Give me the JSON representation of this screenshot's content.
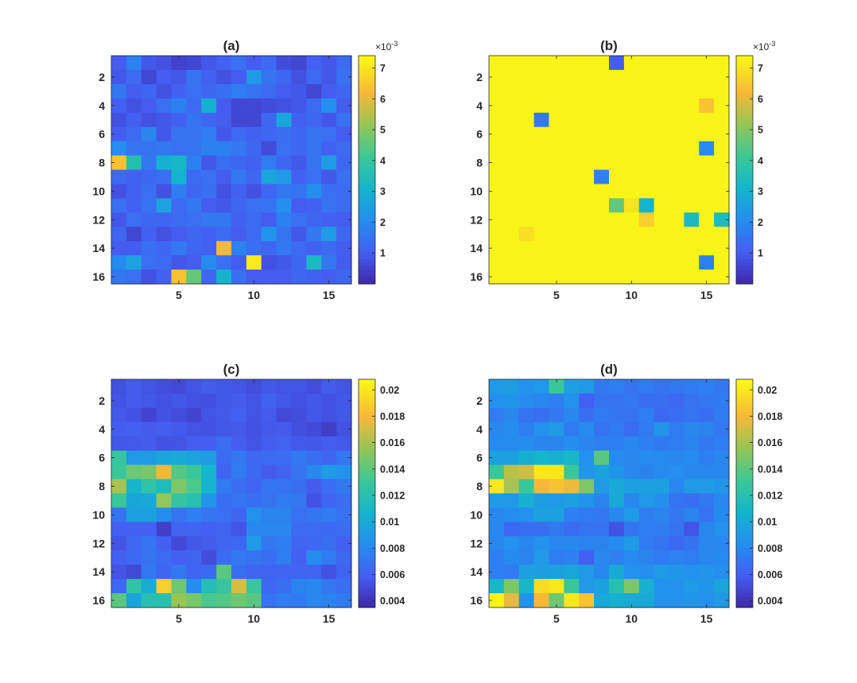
{
  "chart_data": [
    {
      "type": "heatmap",
      "title": "(a)",
      "xticks": [
        "5",
        "10",
        "15"
      ],
      "yticks": [
        "2",
        "4",
        "6",
        "8",
        "10",
        "12",
        "14",
        "16"
      ],
      "colorbar_ticks": [
        "1",
        "2",
        "3",
        "4",
        "5",
        "6",
        "7"
      ],
      "colorbar_exponent": "×10-3",
      "clim": [
        0.0,
        0.0074
      ],
      "values": [
        [
          0.001,
          0.0018,
          0.0009,
          0.0008,
          0.0005,
          0.0006,
          0.0009,
          0.0011,
          0.0014,
          0.001,
          0.0013,
          0.0007,
          0.0006,
          0.0011,
          0.0009,
          0.0013
        ],
        [
          0.0009,
          0.0013,
          0.0006,
          0.001,
          0.0009,
          0.0015,
          0.0011,
          0.0008,
          0.001,
          0.0024,
          0.0015,
          0.0012,
          0.0008,
          0.0013,
          0.0009,
          0.0014
        ],
        [
          0.0016,
          0.001,
          0.0012,
          0.0008,
          0.0011,
          0.0014,
          0.0012,
          0.0014,
          0.0017,
          0.0015,
          0.0013,
          0.001,
          0.0009,
          0.0006,
          0.001,
          0.0012
        ],
        [
          0.0011,
          0.0008,
          0.001,
          0.0014,
          0.0018,
          0.0013,
          0.003,
          0.001,
          0.0006,
          0.0006,
          0.0007,
          0.0008,
          0.0009,
          0.0013,
          0.0021,
          0.001
        ],
        [
          0.0008,
          0.0011,
          0.0008,
          0.0009,
          0.0011,
          0.0015,
          0.0012,
          0.001,
          0.0006,
          0.0006,
          0.0012,
          0.0027,
          0.0011,
          0.0012,
          0.0009,
          0.0014
        ],
        [
          0.001,
          0.0013,
          0.0019,
          0.0009,
          0.0015,
          0.0015,
          0.0017,
          0.0009,
          0.0013,
          0.0011,
          0.0012,
          0.0014,
          0.0012,
          0.0015,
          0.0014,
          0.001
        ],
        [
          0.0021,
          0.0015,
          0.0015,
          0.0016,
          0.0014,
          0.0015,
          0.0018,
          0.0018,
          0.0016,
          0.0012,
          0.0007,
          0.0014,
          0.0012,
          0.0015,
          0.0011,
          0.0013
        ],
        [
          0.0064,
          0.0036,
          0.0016,
          0.003,
          0.0032,
          0.0018,
          0.0009,
          0.0014,
          0.0012,
          0.0011,
          0.0017,
          0.0012,
          0.0009,
          0.0015,
          0.0024,
          0.0012
        ],
        [
          0.0013,
          0.0011,
          0.0012,
          0.0014,
          0.0031,
          0.0013,
          0.0014,
          0.001,
          0.0016,
          0.0012,
          0.0027,
          0.0024,
          0.0011,
          0.0014,
          0.0009,
          0.0014
        ],
        [
          0.0008,
          0.0011,
          0.0014,
          0.0008,
          0.0017,
          0.0012,
          0.0014,
          0.0008,
          0.0011,
          0.0008,
          0.0012,
          0.0016,
          0.0015,
          0.0021,
          0.0014,
          0.0013
        ],
        [
          0.0014,
          0.0011,
          0.0015,
          0.0026,
          0.0013,
          0.0016,
          0.001,
          0.0009,
          0.0012,
          0.0014,
          0.0015,
          0.0021,
          0.001,
          0.0011,
          0.0015,
          0.0013
        ],
        [
          0.0009,
          0.0014,
          0.0012,
          0.0012,
          0.0013,
          0.0014,
          0.0016,
          0.0016,
          0.0011,
          0.0013,
          0.001,
          0.0018,
          0.0014,
          0.0012,
          0.0011,
          0.001
        ],
        [
          0.0012,
          0.0006,
          0.0011,
          0.0008,
          0.001,
          0.0012,
          0.0011,
          0.0013,
          0.001,
          0.0013,
          0.0022,
          0.0015,
          0.0009,
          0.0016,
          0.0024,
          0.0012
        ],
        [
          0.001,
          0.001,
          0.0014,
          0.0012,
          0.0016,
          0.0012,
          0.0011,
          0.0062,
          0.0018,
          0.0014,
          0.0012,
          0.0016,
          0.0013,
          0.0011,
          0.0013,
          0.001
        ],
        [
          0.002,
          0.0026,
          0.0014,
          0.0013,
          0.0009,
          0.001,
          0.002,
          0.0014,
          0.001,
          0.0071,
          0.0008,
          0.0009,
          0.0012,
          0.0033,
          0.0016,
          0.001
        ],
        [
          0.0016,
          0.0014,
          0.0008,
          0.0011,
          0.0064,
          0.0046,
          0.0012,
          0.0031,
          0.0014,
          0.001,
          0.001,
          0.001,
          0.0012,
          0.0011,
          0.001,
          0.0012
        ]
      ]
    },
    {
      "type": "heatmap",
      "title": "(b)",
      "xticks": [
        "5",
        "10",
        "15"
      ],
      "yticks": [
        "2",
        "4",
        "6",
        "8",
        "10",
        "12",
        "14",
        "16"
      ],
      "colorbar_ticks": [
        "1",
        "2",
        "3",
        "4",
        "5",
        "6",
        "7"
      ],
      "colorbar_exponent": "×10-3",
      "clim": [
        0.0,
        0.0074
      ],
      "base_value": 0.0073,
      "exceptions": [
        {
          "row": 1,
          "col": 9,
          "value": 0.001
        },
        {
          "row": 4,
          "col": 15,
          "value": 0.0064
        },
        {
          "row": 5,
          "col": 4,
          "value": 0.0016
        },
        {
          "row": 7,
          "col": 15,
          "value": 0.002
        },
        {
          "row": 9,
          "col": 8,
          "value": 0.0018
        },
        {
          "row": 11,
          "col": 9,
          "value": 0.0046
        },
        {
          "row": 11,
          "col": 10,
          "value": 0.007
        },
        {
          "row": 11,
          "col": 11,
          "value": 0.0031
        },
        {
          "row": 12,
          "col": 11,
          "value": 0.0066
        },
        {
          "row": 12,
          "col": 14,
          "value": 0.0033
        },
        {
          "row": 12,
          "col": 16,
          "value": 0.0034
        },
        {
          "row": 13,
          "col": 3,
          "value": 0.0069
        },
        {
          "row": 15,
          "col": 15,
          "value": 0.0018
        }
      ]
    },
    {
      "type": "heatmap",
      "title": "(c)",
      "xticks": [
        "5",
        "10",
        "15"
      ],
      "yticks": [
        "2",
        "4",
        "6",
        "8",
        "10",
        "12",
        "14",
        "16"
      ],
      "colorbar_ticks": [
        "0.004",
        "0.006",
        "0.008",
        "0.01",
        "0.012",
        "0.014",
        "0.016",
        "0.018",
        "0.02"
      ],
      "clim": [
        0.0035,
        0.0208
      ],
      "values": [
        [
          0.0053,
          0.0058,
          0.0055,
          0.0052,
          0.005,
          0.0055,
          0.0058,
          0.0056,
          0.0055,
          0.0052,
          0.0056,
          0.0055,
          0.0055,
          0.0052,
          0.0058,
          0.0055
        ],
        [
          0.0055,
          0.0058,
          0.0056,
          0.0054,
          0.0056,
          0.0054,
          0.0053,
          0.0056,
          0.0058,
          0.0055,
          0.0062,
          0.0056,
          0.0054,
          0.0056,
          0.0054,
          0.0056
        ],
        [
          0.0057,
          0.0054,
          0.0048,
          0.0054,
          0.0052,
          0.0048,
          0.0055,
          0.0057,
          0.006,
          0.0055,
          0.0058,
          0.005,
          0.0052,
          0.0056,
          0.0054,
          0.0056
        ],
        [
          0.0059,
          0.006,
          0.0058,
          0.0059,
          0.0057,
          0.0055,
          0.0054,
          0.0056,
          0.0057,
          0.0054,
          0.0057,
          0.0058,
          0.0053,
          0.0051,
          0.0045,
          0.0054
        ],
        [
          0.0056,
          0.0057,
          0.0058,
          0.0054,
          0.0055,
          0.0059,
          0.0059,
          0.0067,
          0.0059,
          0.0055,
          0.0059,
          0.0061,
          0.0057,
          0.0056,
          0.0059,
          0.0057
        ],
        [
          0.0128,
          0.009,
          0.0092,
          0.0098,
          0.01,
          0.0096,
          0.0093,
          0.0066,
          0.0072,
          0.0064,
          0.0066,
          0.0067,
          0.0073,
          0.0068,
          0.0063,
          0.0071
        ],
        [
          0.013,
          0.0145,
          0.0148,
          0.0178,
          0.0138,
          0.013,
          0.0108,
          0.0062,
          0.0074,
          0.0065,
          0.0058,
          0.0061,
          0.007,
          0.008,
          0.009,
          0.0086
        ],
        [
          0.016,
          0.0108,
          0.0125,
          0.0115,
          0.015,
          0.0136,
          0.0108,
          0.0074,
          0.0067,
          0.0062,
          0.0071,
          0.007,
          0.0068,
          0.0058,
          0.0067,
          0.0073
        ],
        [
          0.013,
          0.0098,
          0.01,
          0.0155,
          0.0127,
          0.012,
          0.0088,
          0.0068,
          0.0071,
          0.0068,
          0.007,
          0.0074,
          0.0072,
          0.0054,
          0.0063,
          0.0067
        ],
        [
          0.007,
          0.0095,
          0.0095,
          0.0083,
          0.007,
          0.0076,
          0.0071,
          0.0069,
          0.0063,
          0.0085,
          0.0078,
          0.0078,
          0.0069,
          0.0071,
          0.0074,
          0.0069
        ],
        [
          0.006,
          0.006,
          0.006,
          0.0046,
          0.0062,
          0.0063,
          0.006,
          0.0062,
          0.0055,
          0.008,
          0.008,
          0.008,
          0.0066,
          0.0066,
          0.0065,
          0.0067
        ],
        [
          0.0055,
          0.0064,
          0.0071,
          0.006,
          0.005,
          0.0056,
          0.0058,
          0.0063,
          0.0064,
          0.009,
          0.0072,
          0.0075,
          0.0063,
          0.0064,
          0.0068,
          0.006
        ],
        [
          0.006,
          0.0065,
          0.007,
          0.0066,
          0.006,
          0.0062,
          0.0052,
          0.0066,
          0.0073,
          0.007,
          0.0068,
          0.0075,
          0.006,
          0.0083,
          0.0074,
          0.0064
        ],
        [
          0.0055,
          0.005,
          0.0072,
          0.0063,
          0.0072,
          0.0062,
          0.0065,
          0.014,
          0.0068,
          0.0063,
          0.0062,
          0.0063,
          0.0063,
          0.0063,
          0.0054,
          0.0062
        ],
        [
          0.0064,
          0.0125,
          0.0103,
          0.019,
          0.0145,
          0.0083,
          0.0118,
          0.0128,
          0.0172,
          0.013,
          0.0064,
          0.0068,
          0.0078,
          0.008,
          0.0072,
          0.0068
        ],
        [
          0.014,
          0.0098,
          0.012,
          0.012,
          0.0156,
          0.0148,
          0.0135,
          0.0138,
          0.0145,
          0.014,
          0.007,
          0.0075,
          0.0074,
          0.008,
          0.0078,
          0.0074
        ]
      ]
    },
    {
      "type": "heatmap",
      "title": "(d)",
      "xticks": [
        "5",
        "10",
        "15"
      ],
      "yticks": [
        "2",
        "4",
        "6",
        "8",
        "10",
        "12",
        "14",
        "16"
      ],
      "colorbar_ticks": [
        "0.004",
        "0.006",
        "0.008",
        "0.01",
        "0.012",
        "0.014",
        "0.016",
        "0.018",
        "0.02"
      ],
      "clim": [
        0.0035,
        0.0208
      ],
      "values": [
        [
          0.009,
          0.0093,
          0.0086,
          0.0089,
          0.013,
          0.0094,
          0.009,
          0.0072,
          0.0075,
          0.007,
          0.0074,
          0.007,
          0.0072,
          0.0074,
          0.0076,
          0.0072
        ],
        [
          0.0085,
          0.0088,
          0.0083,
          0.008,
          0.0076,
          0.0085,
          0.006,
          0.007,
          0.007,
          0.0072,
          0.0068,
          0.0068,
          0.0064,
          0.007,
          0.0072,
          0.0074
        ],
        [
          0.0075,
          0.008,
          0.007,
          0.0068,
          0.0072,
          0.008,
          0.0068,
          0.0074,
          0.0071,
          0.007,
          0.0076,
          0.0065,
          0.0068,
          0.007,
          0.0068,
          0.0074
        ],
        [
          0.008,
          0.0083,
          0.0076,
          0.0086,
          0.009,
          0.0074,
          0.0082,
          0.007,
          0.0074,
          0.0066,
          0.0074,
          0.0088,
          0.0075,
          0.008,
          0.0078,
          0.0072
        ],
        [
          0.0082,
          0.0082,
          0.0083,
          0.0079,
          0.0078,
          0.0083,
          0.0079,
          0.0076,
          0.0076,
          0.008,
          0.0076,
          0.0073,
          0.0075,
          0.0078,
          0.0073,
          0.0076
        ],
        [
          0.0094,
          0.0095,
          0.0104,
          0.0108,
          0.0105,
          0.011,
          0.0085,
          0.014,
          0.0082,
          0.008,
          0.0083,
          0.0082,
          0.008,
          0.0082,
          0.0076,
          0.008
        ],
        [
          0.013,
          0.0165,
          0.017,
          0.02,
          0.02,
          0.013,
          0.0088,
          0.0095,
          0.0088,
          0.008,
          0.0078,
          0.0082,
          0.0084,
          0.008,
          0.008,
          0.008
        ],
        [
          0.02,
          0.016,
          0.013,
          0.018,
          0.0185,
          0.0178,
          0.015,
          0.009,
          0.01,
          0.0095,
          0.0095,
          0.0095,
          0.008,
          0.009,
          0.009,
          0.0088
        ],
        [
          0.009,
          0.009,
          0.0105,
          0.0092,
          0.009,
          0.0095,
          0.0088,
          0.0078,
          0.01,
          0.008,
          0.009,
          0.0084,
          0.007,
          0.0068,
          0.0072,
          0.008
        ],
        [
          0.008,
          0.0083,
          0.0085,
          0.0095,
          0.0095,
          0.0076,
          0.0074,
          0.0072,
          0.008,
          0.009,
          0.0075,
          0.0078,
          0.0072,
          0.0078,
          0.007,
          0.0082
        ],
        [
          0.008,
          0.0064,
          0.0068,
          0.0068,
          0.0072,
          0.0066,
          0.007,
          0.007,
          0.0054,
          0.007,
          0.0076,
          0.0075,
          0.007,
          0.0055,
          0.008,
          0.0086
        ],
        [
          0.008,
          0.0085,
          0.008,
          0.0086,
          0.0081,
          0.0081,
          0.0078,
          0.0078,
          0.0082,
          0.009,
          0.0074,
          0.007,
          0.0065,
          0.007,
          0.0081,
          0.008
        ],
        [
          0.0076,
          0.0082,
          0.0078,
          0.009,
          0.0075,
          0.0076,
          0.006,
          0.008,
          0.0076,
          0.0082,
          0.0078,
          0.0074,
          0.0077,
          0.0075,
          0.008,
          0.0082
        ],
        [
          0.0076,
          0.0074,
          0.0094,
          0.0093,
          0.0095,
          0.0098,
          0.009,
          0.008,
          0.01,
          0.0085,
          0.0084,
          0.009,
          0.0088,
          0.0085,
          0.0087,
          0.0084
        ],
        [
          0.011,
          0.015,
          0.011,
          0.0195,
          0.02,
          0.013,
          0.009,
          0.0095,
          0.012,
          0.015,
          0.0105,
          0.0085,
          0.0086,
          0.009,
          0.0088,
          0.0097
        ],
        [
          0.0205,
          0.0175,
          0.0085,
          0.018,
          0.0145,
          0.02,
          0.0185,
          0.01,
          0.0105,
          0.01,
          0.01,
          0.0085,
          0.0086,
          0.0088,
          0.0086,
          0.009
        ]
      ]
    }
  ]
}
